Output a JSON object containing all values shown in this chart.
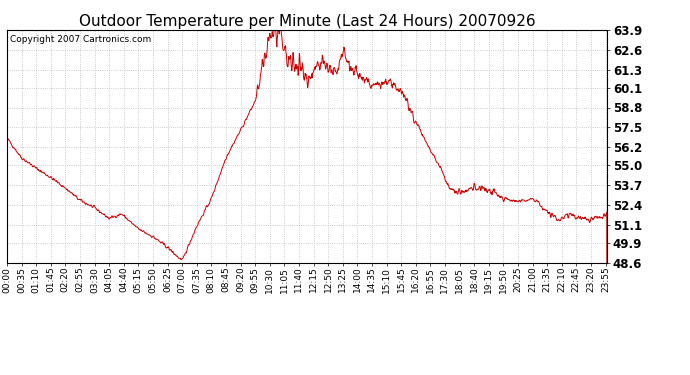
{
  "title": "Outdoor Temperature per Minute (Last 24 Hours) 20070926",
  "copyright_text": "Copyright 2007 Cartronics.com",
  "line_color": "#cc0000",
  "background_color": "#ffffff",
  "plot_background": "#ffffff",
  "grid_color": "#bbbbbb",
  "ylim": [
    48.6,
    63.9
  ],
  "yticks": [
    48.6,
    49.9,
    51.1,
    52.4,
    53.7,
    55.0,
    56.2,
    57.5,
    58.8,
    60.1,
    61.3,
    62.6,
    63.9
  ],
  "title_fontsize": 11,
  "tick_fontsize": 6.5,
  "ytick_fontsize": 8.5,
  "copyright_fontsize": 6.5,
  "x_tick_labels": [
    "00:00",
    "00:35",
    "01:10",
    "01:45",
    "02:20",
    "02:55",
    "03:30",
    "04:05",
    "04:40",
    "05:15",
    "05:50",
    "06:25",
    "07:00",
    "07:35",
    "08:10",
    "08:45",
    "09:20",
    "09:55",
    "10:30",
    "11:05",
    "11:40",
    "12:15",
    "12:50",
    "13:25",
    "14:00",
    "14:35",
    "15:10",
    "15:45",
    "16:20",
    "16:55",
    "17:30",
    "18:05",
    "18:40",
    "19:15",
    "19:50",
    "20:25",
    "21:00",
    "21:35",
    "22:10",
    "22:45",
    "23:20",
    "23:55"
  ],
  "control_points": [
    [
      0,
      56.8
    ],
    [
      35,
      55.5
    ],
    [
      70,
      54.8
    ],
    [
      105,
      54.2
    ],
    [
      140,
      53.5
    ],
    [
      175,
      52.7
    ],
    [
      210,
      52.2
    ],
    [
      245,
      51.5
    ],
    [
      275,
      51.8
    ],
    [
      315,
      50.8
    ],
    [
      350,
      50.3
    ],
    [
      385,
      49.6
    ],
    [
      420,
      48.7
    ],
    [
      455,
      51.0
    ],
    [
      490,
      52.8
    ],
    [
      525,
      55.5
    ],
    [
      560,
      57.3
    ],
    [
      595,
      59.2
    ],
    [
      615,
      61.5
    ],
    [
      630,
      63.5
    ],
    [
      645,
      63.85
    ],
    [
      660,
      63.0
    ],
    [
      680,
      61.5
    ],
    [
      700,
      61.8
    ],
    [
      720,
      60.5
    ],
    [
      740,
      61.5
    ],
    [
      755,
      62.0
    ],
    [
      770,
      61.3
    ],
    [
      790,
      61.0
    ],
    [
      805,
      62.4
    ],
    [
      820,
      61.5
    ],
    [
      840,
      61.0
    ],
    [
      860,
      60.5
    ],
    [
      875,
      60.2
    ],
    [
      900,
      60.3
    ],
    [
      910,
      60.5
    ],
    [
      930,
      60.2
    ],
    [
      945,
      60.0
    ],
    [
      970,
      58.5
    ],
    [
      1010,
      56.2
    ],
    [
      1040,
      54.8
    ],
    [
      1060,
      53.5
    ],
    [
      1080,
      53.2
    ],
    [
      1100,
      53.3
    ],
    [
      1120,
      53.5
    ],
    [
      1140,
      53.5
    ],
    [
      1155,
      53.3
    ],
    [
      1175,
      53.1
    ],
    [
      1190,
      52.8
    ],
    [
      1210,
      52.7
    ],
    [
      1225,
      52.6
    ],
    [
      1245,
      52.7
    ],
    [
      1260,
      52.8
    ],
    [
      1278,
      52.4
    ],
    [
      1295,
      52.0
    ],
    [
      1310,
      51.6
    ],
    [
      1325,
      51.4
    ],
    [
      1340,
      51.7
    ],
    [
      1355,
      51.8
    ],
    [
      1365,
      51.6
    ],
    [
      1380,
      51.5
    ],
    [
      1395,
      51.4
    ],
    [
      1410,
      51.5
    ],
    [
      1425,
      51.6
    ],
    [
      1439,
      51.8
    ]
  ]
}
